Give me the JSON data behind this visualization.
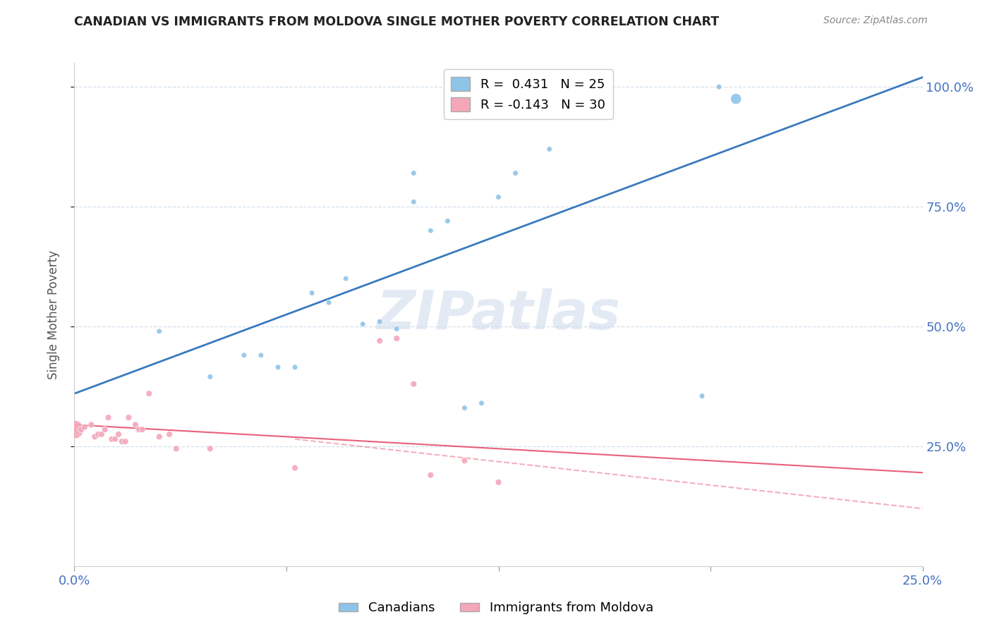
{
  "title": "CANADIAN VS IMMIGRANTS FROM MOLDOVA SINGLE MOTHER POVERTY CORRELATION CHART",
  "source": "Source: ZipAtlas.com",
  "ylabel": "Single Mother Poverty",
  "watermark": "ZIPatlas",
  "legend_blue_r": "0.431",
  "legend_blue_n": "25",
  "legend_pink_r": "-0.143",
  "legend_pink_n": "30",
  "legend_label_blue": "Canadians",
  "legend_label_pink": "Immigrants from Moldova",
  "blue_color": "#8ec4e8",
  "pink_color": "#f4a7b9",
  "blue_line_color": "#3a7abf",
  "pink_line_color": "#e8607a",
  "canadians_x": [
    0.025,
    0.04,
    0.05,
    0.055,
    0.06,
    0.065,
    0.07,
    0.075,
    0.08,
    0.085,
    0.09,
    0.095,
    0.1,
    0.1,
    0.105,
    0.11,
    0.115,
    0.12,
    0.125,
    0.13,
    0.14,
    0.145,
    0.185,
    0.19,
    0.195
  ],
  "canadians_y": [
    0.49,
    0.395,
    0.44,
    0.44,
    0.415,
    0.415,
    0.57,
    0.55,
    0.6,
    0.505,
    0.51,
    0.495,
    0.76,
    0.82,
    0.7,
    0.72,
    0.33,
    0.34,
    0.77,
    0.82,
    0.87,
    0.975,
    0.355,
    1.0,
    0.975
  ],
  "canadians_size": [
    30,
    30,
    30,
    30,
    30,
    30,
    30,
    30,
    30,
    30,
    30,
    30,
    30,
    30,
    30,
    30,
    30,
    30,
    30,
    30,
    30,
    30,
    30,
    30,
    120
  ],
  "moldova_x": [
    0.0,
    0.002,
    0.003,
    0.005,
    0.006,
    0.007,
    0.008,
    0.009,
    0.01,
    0.011,
    0.012,
    0.013,
    0.014,
    0.015,
    0.016,
    0.018,
    0.019,
    0.02,
    0.022,
    0.025,
    0.028,
    0.03,
    0.04,
    0.065,
    0.09,
    0.095,
    0.1,
    0.105,
    0.115,
    0.125
  ],
  "moldova_y": [
    0.285,
    0.285,
    0.29,
    0.295,
    0.27,
    0.275,
    0.275,
    0.285,
    0.31,
    0.265,
    0.265,
    0.275,
    0.26,
    0.26,
    0.31,
    0.295,
    0.285,
    0.285,
    0.36,
    0.27,
    0.275,
    0.245,
    0.245,
    0.205,
    0.47,
    0.475,
    0.38,
    0.19,
    0.22,
    0.175
  ],
  "moldova_size": [
    350,
    40,
    40,
    40,
    40,
    40,
    40,
    40,
    40,
    40,
    40,
    40,
    40,
    40,
    40,
    40,
    40,
    40,
    40,
    40,
    40,
    40,
    40,
    40,
    40,
    40,
    40,
    40,
    40,
    40
  ],
  "blue_trend_x": [
    0.0,
    0.25
  ],
  "blue_trend_y": [
    0.36,
    1.02
  ],
  "pink_trend_x": [
    0.0,
    0.25
  ],
  "pink_trend_y": [
    0.295,
    0.195
  ],
  "pink_dash_trend_x": [
    0.065,
    0.25
  ],
  "pink_dash_trend_y": [
    0.265,
    0.12
  ],
  "xlim": [
    0.0,
    0.25
  ],
  "ylim": [
    0.0,
    1.05
  ],
  "yticks": [
    0.25,
    0.5,
    0.75,
    1.0
  ],
  "ytick_labels": [
    "25.0%",
    "50.0%",
    "75.0%",
    "100.0%"
  ],
  "xticks": [
    0.0,
    0.0625,
    0.125,
    0.1875,
    0.25
  ],
  "xtick_labels_show": [
    "0.0%",
    "",
    "",
    "",
    "25.0%"
  ],
  "grid_color": "#c8d8e8",
  "spine_color": "#cccccc",
  "axis_label_color": "#4472c4",
  "title_color": "#222222",
  "source_color": "#888888",
  "ylabel_color": "#555555"
}
